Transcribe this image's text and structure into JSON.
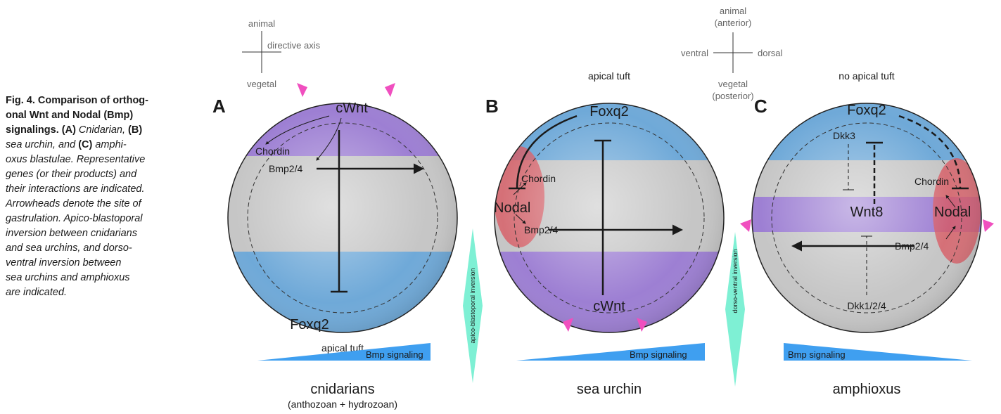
{
  "caption": {
    "lines": [
      [
        "Fig. 4. Comparison of orthog-"
      ],
      [
        "onal Wnt and Nodal (Bmp)"
      ],
      [
        "signalings. (A) ",
        "Cnidarian, ",
        "(B)"
      ],
      [
        "sea urchin, and ",
        "(C)",
        " amphi-"
      ],
      [
        "oxus blastulae. Representative"
      ],
      [
        "genes (or their products) and"
      ],
      [
        "their interactions are indicated."
      ],
      [
        "Arrowheads denote the site of"
      ],
      [
        "gastrulation. Apico-blastoporal"
      ],
      [
        "inversion between cnidarians"
      ],
      [
        "and sea urchins, and dorso-"
      ],
      [
        "ventral inversion between"
      ],
      [
        "sea urchins and amphioxus"
      ],
      [
        "are indicated."
      ]
    ]
  },
  "axis_keys": [
    {
      "top": "animal",
      "right": "directive axis",
      "bottom": "vegetal"
    },
    {
      "top": [
        "animal",
        "(anterior)"
      ],
      "left": "ventral",
      "right": "dorsal",
      "bottom": [
        "vegetal",
        "(posterior)"
      ]
    }
  ],
  "panels": [
    {
      "letter": "A",
      "genes": [
        "cWnt",
        "Chordin",
        "Bmp2/4",
        "Foxq2"
      ],
      "tuft": "apical tuft",
      "gradient": "Bmp signaling",
      "name": "cnidarians",
      "subname": "(anthozoan + hydrozoan)"
    },
    {
      "letter": "B",
      "genes": [
        "Foxq2",
        "Chordin",
        "Nodal",
        "Bmp2/4",
        "cWnt"
      ],
      "tuft": "apical tuft",
      "gradient": "Bmp signaling",
      "name": "sea urchin"
    },
    {
      "letter": "C",
      "genes": [
        "Foxq2",
        "Dkk3",
        "Chordin",
        "Wnt8",
        "Nodal",
        "Bmp2/4",
        "Dkk1/2/4"
      ],
      "tuft": "no apical tuft",
      "gradient": "Bmp signaling",
      "name": "amphioxus"
    }
  ],
  "inversions": [
    "apico-blastoporal inversion",
    "dorso-ventral inversion"
  ]
}
